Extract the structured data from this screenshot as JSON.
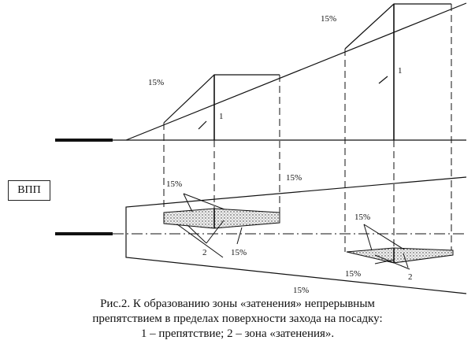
{
  "diagram": {
    "slope_label": "15%",
    "obstacle_label": "1",
    "shadow_label": "2",
    "runway_label": "ВПП",
    "colors": {
      "ink": "#111111",
      "fill": "#d8d8d8"
    }
  },
  "caption": {
    "line1": "Рис.2. К образованию зоны «затенения» непрерывным",
    "line2": "препятствием в  пределах поверхности захода на посадку:",
    "line3": "1 – препятствие; 2 – зона «затенения»."
  }
}
